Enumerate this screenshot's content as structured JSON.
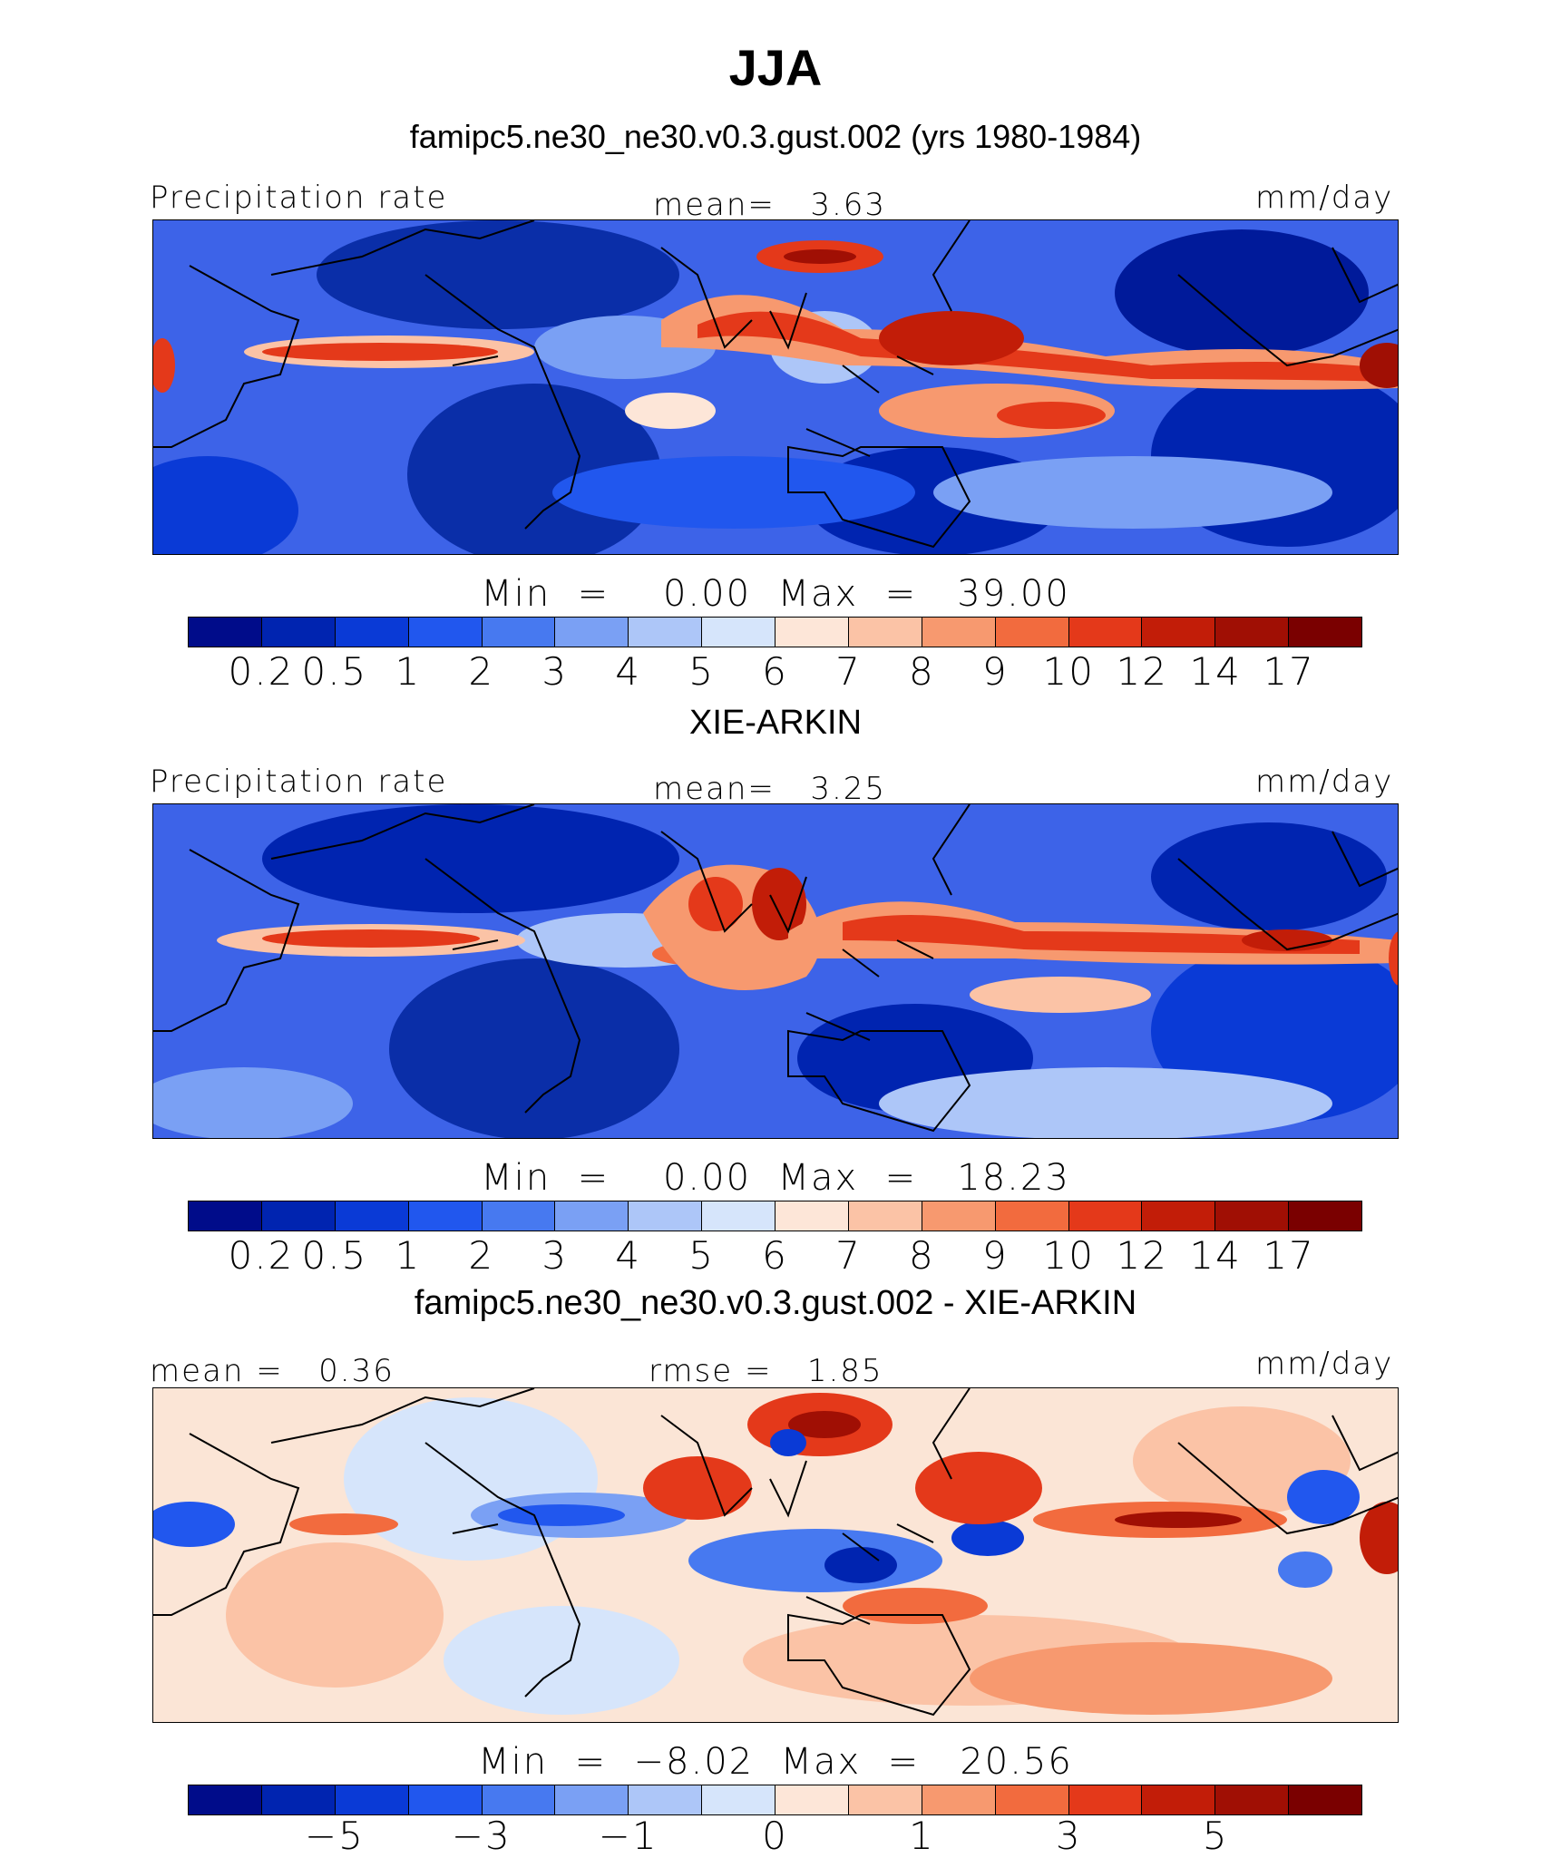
{
  "header": {
    "title": "JJA",
    "subtitle": "famipc5.ne30_ne30.v0.3.gust.002 (yrs 1980-1984)"
  },
  "panels": [
    {
      "caption": "",
      "left_label": "Precipitation rate",
      "center_label": "mean=   3.63",
      "units": "mm/day",
      "minmax": "Min  =    0.00  Max  =   39.00",
      "colorbar_ticks": [
        "0.2",
        "0.5",
        "1",
        "2",
        "3",
        "4",
        "5",
        "6",
        "7",
        "8",
        "9",
        "10",
        "12",
        "14",
        "17"
      ]
    },
    {
      "caption": "XIE-ARKIN",
      "left_label": "Precipitation rate",
      "center_label": "mean=   3.25",
      "units": "mm/day",
      "minmax": "Min  =    0.00  Max  =   18.23",
      "colorbar_ticks": [
        "0.2",
        "0.5",
        "1",
        "2",
        "3",
        "4",
        "5",
        "6",
        "7",
        "8",
        "9",
        "10",
        "12",
        "14",
        "17"
      ]
    },
    {
      "caption": "famipc5.ne30_ne30.v0.3.gust.002 - XIE-ARKIN",
      "left_label": "mean =   0.36",
      "center_label": "rmse =   1.85",
      "units": "mm/day",
      "minmax": "Min  =  −8.02  Max  =   20.56",
      "colorbar_ticks": [
        "−5",
        "−3",
        "−1",
        "0",
        "1",
        "3",
        "5"
      ]
    }
  ],
  "colors": {
    "palette": [
      "#000c8a",
      "#0024b0",
      "#0a3ad6",
      "#2157ee",
      "#4779f0",
      "#7aa0f4",
      "#adc6f8",
      "#d6e5fb",
      "#fde6d8",
      "#fbc3a6",
      "#f7996f",
      "#f26b3e",
      "#e4391a",
      "#c21d08",
      "#a00f04",
      "#7a0000"
    ],
    "ocean_background": "#3d63e8",
    "diff_background": "#fbe5d6",
    "coastline": "#000000"
  }
}
